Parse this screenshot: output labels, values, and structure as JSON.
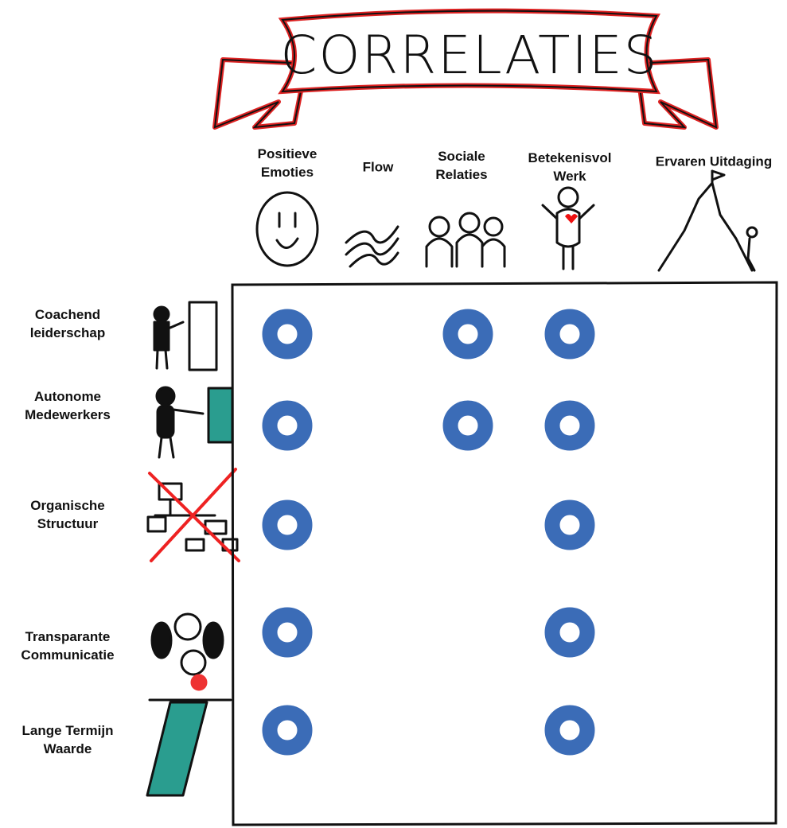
{
  "title": "CORRELATIES",
  "columns": [
    "Positieve Emoties",
    "Flow",
    "Sociale Relaties",
    "Betekenisvol Werk",
    "Ervaren Uitdaging"
  ],
  "rows": [
    {
      "label": "Coachend leiderschap",
      "cells": [
        true,
        false,
        true,
        true,
        false
      ]
    },
    {
      "label": "Autonome Medewerkers",
      "cells": [
        true,
        false,
        true,
        true,
        false
      ]
    },
    {
      "label": "Organische Structuur",
      "cells": [
        true,
        false,
        false,
        true,
        false
      ]
    },
    {
      "label": "Transparante Communicatie",
      "cells": [
        true,
        false,
        false,
        true,
        false
      ]
    },
    {
      "label": "Lange Termijn Waarde",
      "cells": [
        true,
        false,
        false,
        true,
        false
      ]
    }
  ]
}
